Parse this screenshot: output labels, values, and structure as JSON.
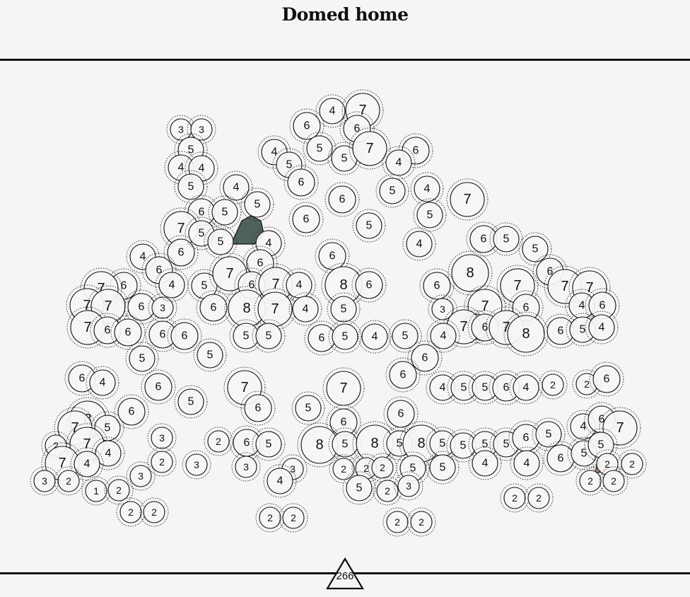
{
  "title": "Domed home",
  "level_value": "266",
  "colors": {
    "background": "#f6f4f4",
    "ink": "#111111",
    "fill_dark": "#4e6259",
    "fill_tan": "#b0866e"
  },
  "circle_numbers": [
    "3",
    "3",
    "5",
    "4",
    "4",
    "5",
    "4",
    "6",
    "5",
    "5",
    "7",
    "6",
    "5",
    "5",
    "4",
    "4",
    "6",
    "6",
    "4",
    "5",
    "6",
    "6",
    "5",
    "4",
    "7",
    "6",
    "5",
    "7",
    "6",
    "4",
    "5",
    "4",
    "6",
    "6",
    "5",
    "7",
    "5",
    "4",
    "6",
    "5",
    "6",
    "5",
    "8",
    "6",
    "7",
    "7",
    "7",
    "4",
    "6",
    "6",
    "8",
    "6",
    "5",
    "3",
    "7",
    "6",
    "5",
    "7",
    "6",
    "7",
    "8",
    "6",
    "5",
    "4",
    "6",
    "7",
    "7",
    "7",
    "6",
    "3",
    "4",
    "5",
    "7",
    "6",
    "7",
    "4",
    "6",
    "8",
    "7",
    "4",
    "7",
    "6",
    "6",
    "6",
    "6",
    "5",
    "5",
    "6",
    "5",
    "4",
    "5",
    "4",
    "6",
    "6",
    "5",
    "5",
    "6",
    "4",
    "6",
    "5",
    "7",
    "6",
    "7",
    "5",
    "6",
    "6",
    "4",
    "5",
    "5",
    "6",
    "4",
    "2",
    "2",
    "6",
    "8",
    "7",
    "5",
    "6",
    "3",
    "2",
    "6",
    "5",
    "8",
    "5",
    "8",
    "5",
    "8",
    "5",
    "5",
    "5",
    "5",
    "6",
    "5",
    "4",
    "6",
    "7",
    "2",
    "7",
    "4",
    "2",
    "3",
    "3",
    "3",
    "2",
    "2",
    "2",
    "5",
    "5",
    "4",
    "4",
    "6",
    "5",
    "5",
    "7",
    "4",
    "3",
    "2",
    "3",
    "4",
    "5",
    "2",
    "3",
    "2",
    "2",
    "2",
    "2",
    "1",
    "2",
    "2",
    "2",
    "2",
    "2",
    "2",
    "2",
    "2",
    "2",
    "2",
    "2"
  ]
}
